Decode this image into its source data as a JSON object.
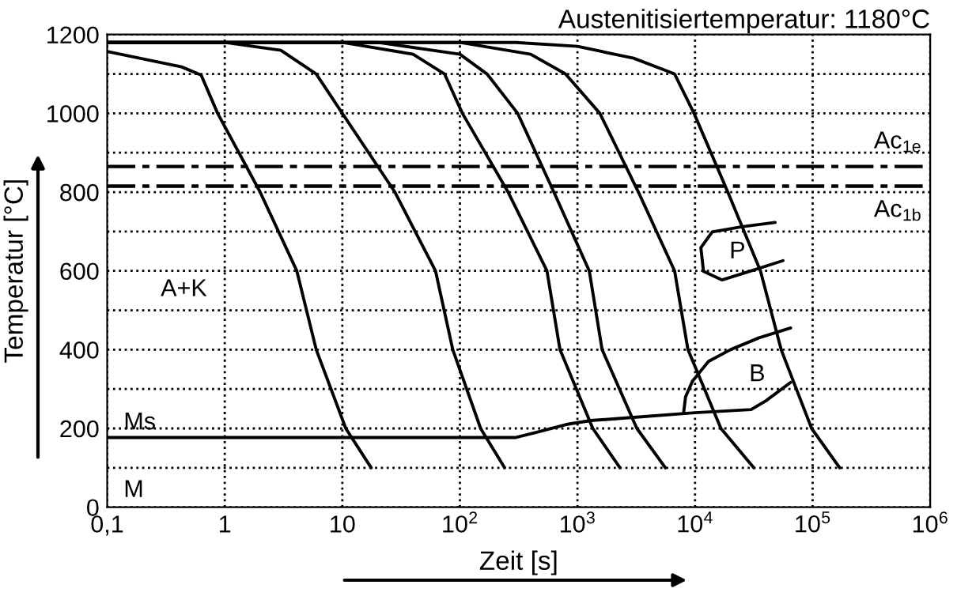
{
  "chart_data": {
    "type": "line",
    "title": "Austenitisiertemperatur: 1180°C",
    "xlabel": "Zeit [s]",
    "ylabel": "Temperatur [°C]",
    "log": "x",
    "xlim": [
      0.1,
      1000000
    ],
    "ylim": [
      0,
      1200
    ],
    "xticks": [
      {
        "value": 0.1,
        "label": "0,1"
      },
      1,
      10,
      {
        "value": 100,
        "label": "10$^{2}$"
      },
      {
        "value": 1000,
        "label": "10$^{3}$"
      },
      {
        "value": 10000,
        "label": "10$^{4}$"
      },
      {
        "value": 100000,
        "label": "10$^{5}$"
      },
      {
        "value": 1000000,
        "label": "10$^{6}$"
      }
    ],
    "yticks": [
      0,
      {
        "value": 100,
        "label": null
      },
      200,
      {
        "value": 300,
        "label": null
      },
      400,
      {
        "value": 500,
        "label": null
      },
      600,
      {
        "value": 700,
        "label": null
      },
      800,
      {
        "value": 900,
        "label": null
      },
      1000,
      {
        "value": 1100,
        "label": null
      },
      1200
    ],
    "grid": true,
    "line_style": "solid",
    "marker": "none",
    "series": [
      {
        "color": "#000000",
        "x": [
          0.1,
          0.43,
          0.63,
          0.87,
          2.0,
          4.1,
          6.0,
          10.7,
          17.6
        ],
        "values": [
          1157,
          1118,
          1097,
          1000,
          800,
          600,
          400,
          200,
          100
        ]
      },
      {
        "color": "#000000",
        "x": [
          0.1,
          1,
          3,
          6,
          10,
          28,
          62,
          87,
          150,
          240
        ],
        "values": [
          1180,
          1180,
          1160,
          1100,
          1000,
          800,
          600,
          400,
          200,
          100
        ]
      },
      {
        "color": "#000000",
        "x": [
          0.1,
          10,
          40,
          74,
          105,
          257,
          550,
          710,
          1350,
          2300
        ],
        "values": [
          1180,
          1180,
          1150,
          1100,
          1000,
          800,
          600,
          400,
          200,
          100
        ]
      },
      {
        "color": "#000000",
        "x": [
          0.1,
          20,
          100,
          170,
          310,
          630,
          1260,
          1620,
          3200,
          5600
        ],
        "values": [
          1180,
          1180,
          1150,
          1100,
          1000,
          800,
          600,
          400,
          200,
          100
        ]
      },
      {
        "color": "#000000",
        "x": [
          0.1,
          100,
          400,
          790,
          1550,
          3300,
          6700,
          8700,
          16600,
          31600
        ],
        "values": [
          1180,
          1180,
          1150,
          1100,
          1000,
          800,
          600,
          400,
          200,
          100
        ]
      },
      {
        "color": "#000000",
        "x": [
          0.1,
          300,
          1000,
          3000,
          6700,
          9800,
          19000,
          36000,
          54000,
          98000,
          170000
        ],
        "values": [
          1180,
          1180,
          1170,
          1140,
          1100,
          1000,
          800,
          600,
          400,
          200,
          100
        ]
      },
      {
        "color": "#000000",
        "x": [
          0.1,
          300,
          450,
          800,
          1300,
          3000,
          10000,
          30000,
          40000,
          65000
        ],
        "values": [
          177,
          177,
          190,
          210,
          220,
          228,
          240,
          248,
          270,
          317
        ]
      },
      {
        "color": "#000000",
        "x": [
          8000,
          8300,
          9500,
          13000,
          20000,
          35000,
          65000
        ],
        "values": [
          240,
          280,
          320,
          370,
          400,
          430,
          455
        ]
      },
      {
        "color": "#000000",
        "x": [
          48000,
          25000,
          14000,
          11200,
          11800,
          17000,
          30000,
          56000
        ],
        "values": [
          723,
          712,
          699,
          659,
          599,
          577,
          600,
          626
        ]
      }
    ],
    "ref_lines": [
      {
        "axis": "y",
        "value": 865,
        "label": "Ac$_{1e}$",
        "color": "#000000",
        "line_style": "dashed"
      },
      {
        "axis": "y",
        "value": 815,
        "label": "Ac$_{1b}$",
        "color": "#000000",
        "line_style": "dashed"
      }
    ],
    "annotations": [
      "A+K",
      "Ms",
      "M",
      "P",
      "B"
    ]
  }
}
